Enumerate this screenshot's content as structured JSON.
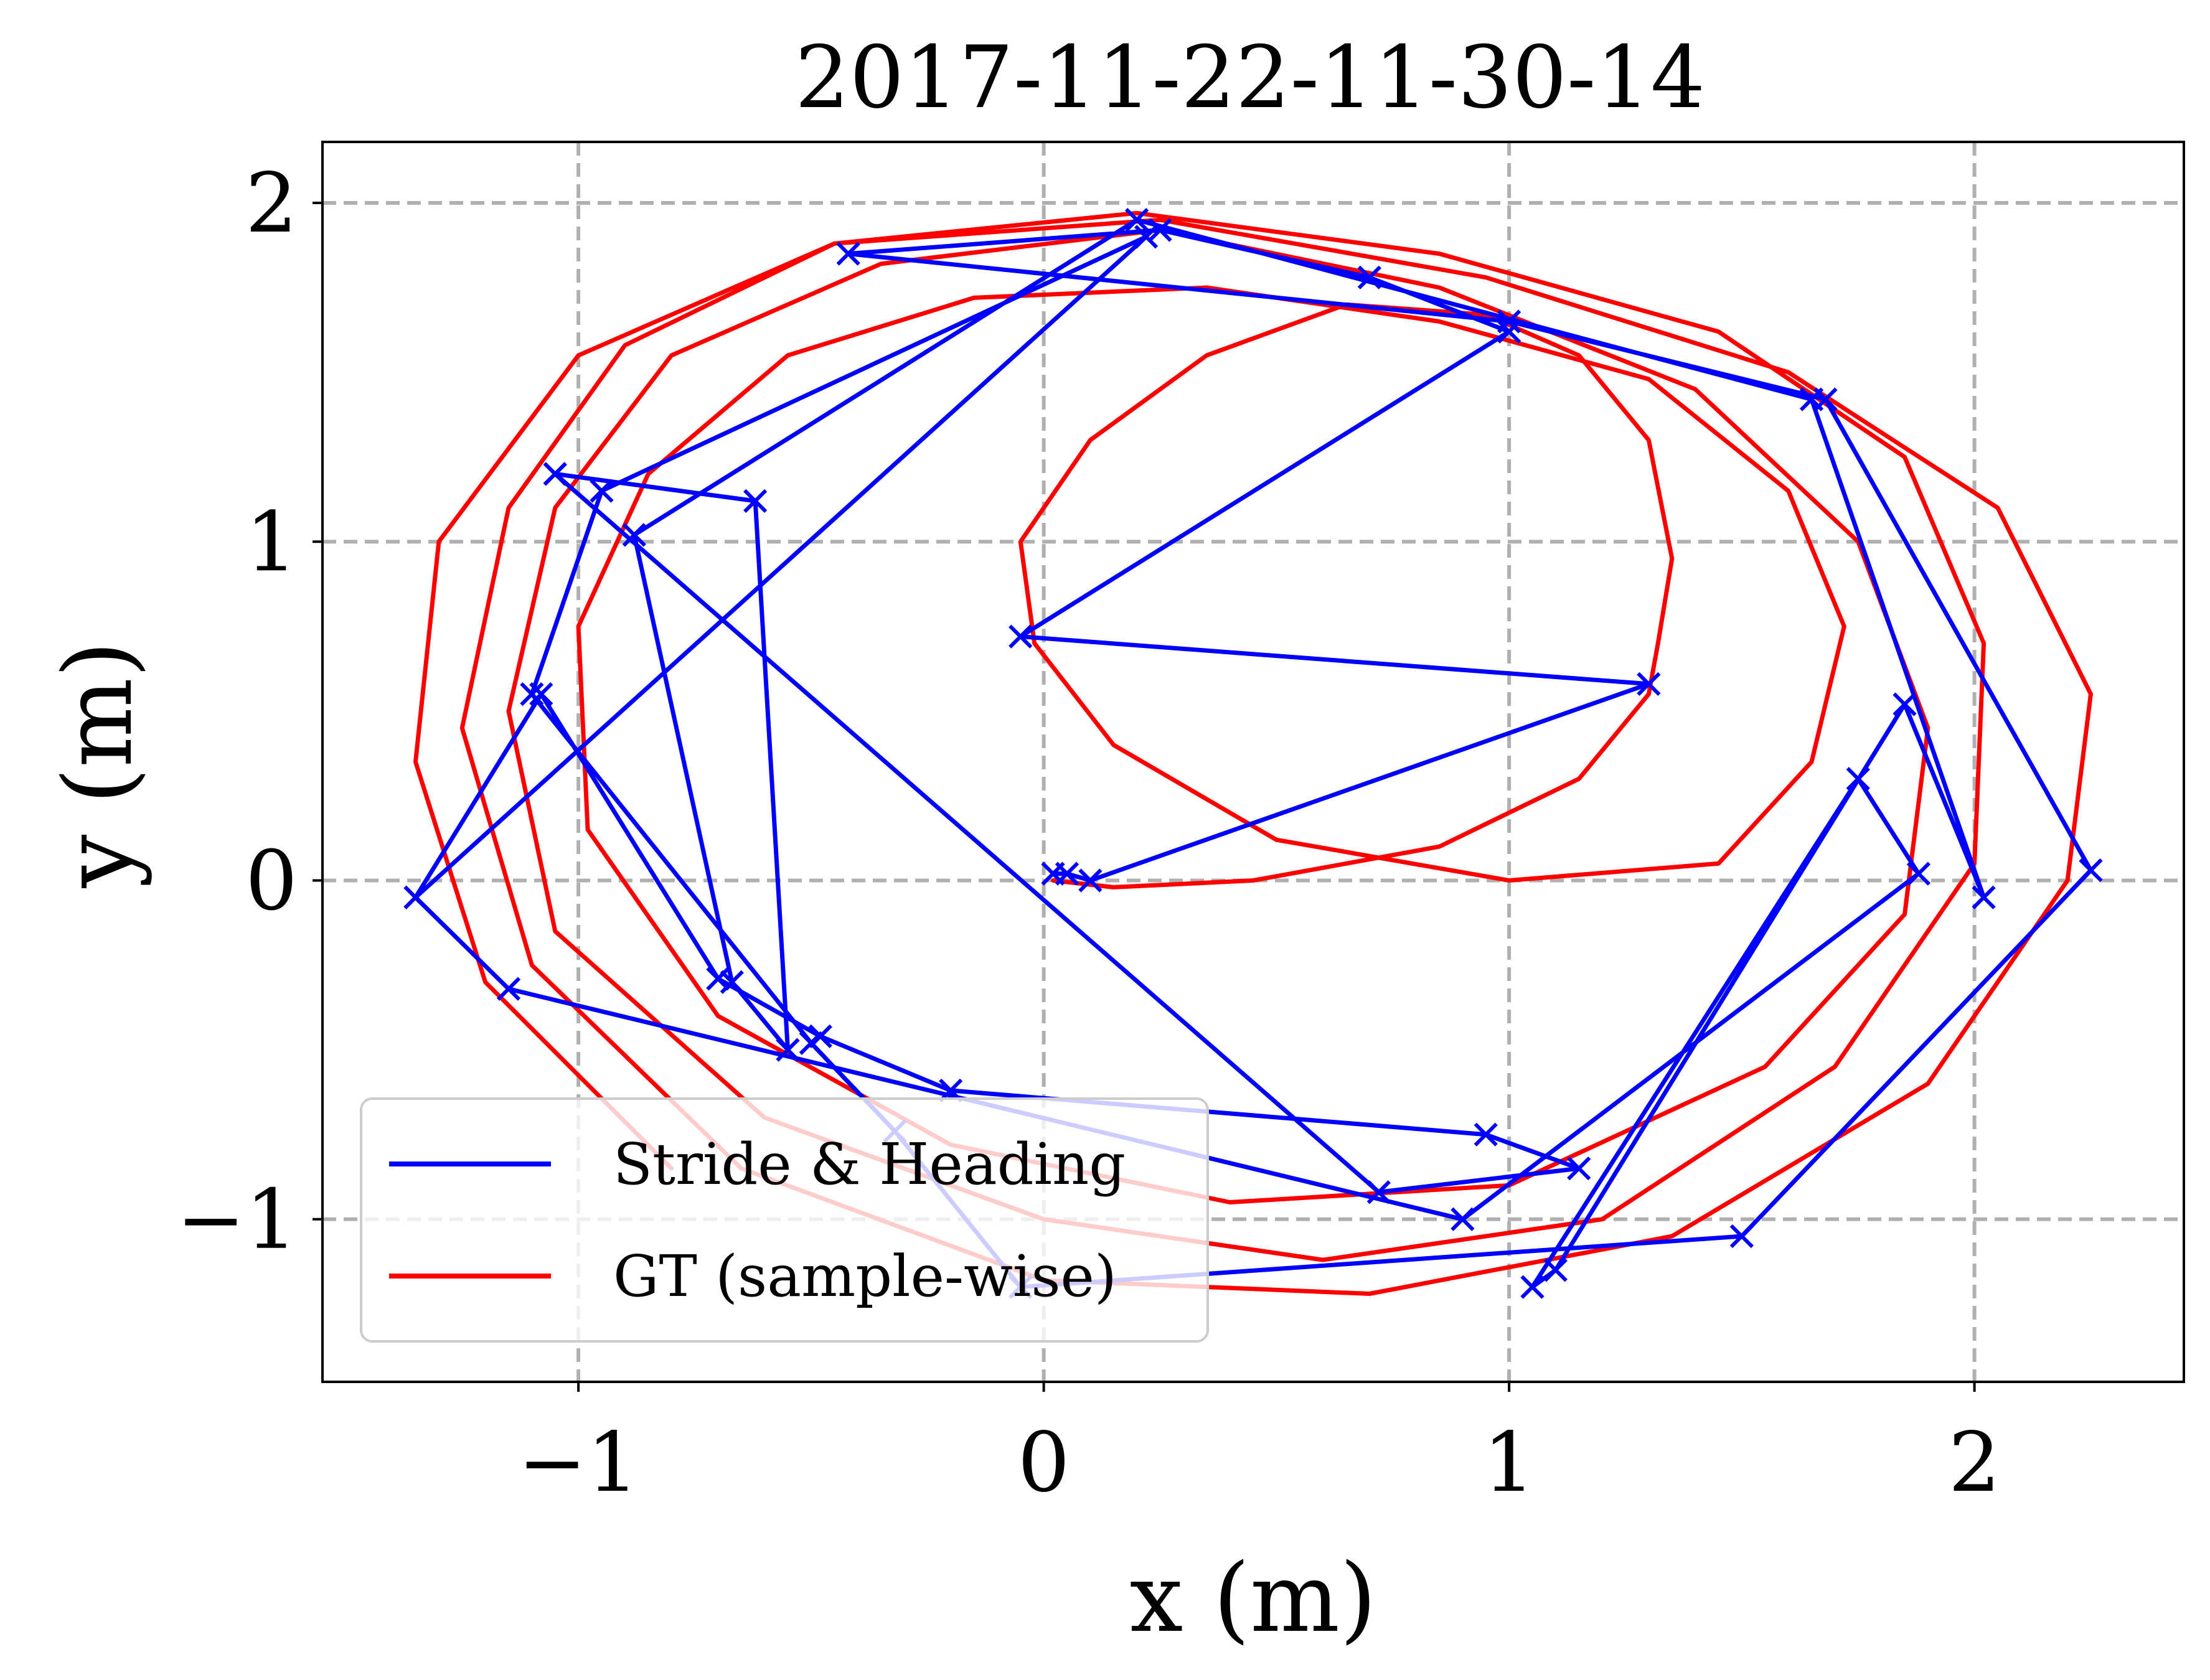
{
  "chart_data": {
    "type": "line",
    "title": "2017-11-22-11-30-14",
    "xlabel": "x (m)",
    "ylabel": "y (m)",
    "xlim": [
      -1.55,
      2.45
    ],
    "ylim": [
      -1.48,
      2.18
    ],
    "xticks": [
      -1,
      0,
      1,
      2
    ],
    "yticks": [
      -1,
      0,
      1,
      2
    ],
    "xtick_labels": [
      "−1",
      "0",
      "1",
      "2"
    ],
    "ytick_labels": [
      "−1",
      "0",
      "1",
      "2"
    ],
    "grid": true,
    "grid_style": "dashed",
    "legend_position": "lower-left",
    "series": [
      {
        "name": "Stride & Heading",
        "color": "#0000ff",
        "marker": "x",
        "x": [
          0.02,
          0.05,
          0.1,
          1.3,
          -0.05,
          1.0,
          0.7,
          0.25,
          -0.42,
          1.0,
          1.68,
          2.25,
          1.5,
          -0.05,
          -0.32,
          -0.5,
          -1.1,
          -0.95,
          0.22,
          -1.35,
          -1.15,
          0.9,
          1.88,
          1.75,
          1.05,
          1.1,
          1.85,
          2.02,
          1.65,
          0.2,
          -0.88,
          -0.67,
          -0.55,
          -0.62,
          -1.05,
          -1.05,
          0.72,
          1.15,
          0.95,
          -0.2,
          -0.48,
          -0.7,
          -1.08,
          -1.35
        ],
        "y": [
          0.02,
          0.02,
          0.0,
          0.58,
          0.72,
          1.62,
          1.78,
          1.92,
          1.85,
          1.65,
          1.42,
          0.03,
          -1.05,
          -1.2,
          -0.74,
          -0.48,
          0.55,
          1.15,
          1.9,
          -0.05,
          -0.32,
          -1.0,
          0.02,
          0.3,
          -1.2,
          -1.15,
          0.52,
          -0.05,
          1.42,
          1.95,
          1.02,
          -0.3,
          -0.5,
          1.12,
          1.2,
          1.2,
          -0.92,
          -0.85,
          -0.75,
          -0.62,
          -0.46,
          -0.29,
          0.55,
          -0.05
        ]
      },
      {
        "name": "GT (sample-wise)",
        "color": "#ff0000",
        "marker": "none",
        "x": [
          0.02,
          0.15,
          0.45,
          0.85,
          1.15,
          1.3,
          1.32,
          1.35,
          1.3,
          1.15,
          0.95,
          0.65,
          0.35,
          0.1,
          -0.05,
          -0.02,
          0.15,
          0.5,
          1.0,
          1.45,
          1.65,
          1.72,
          1.6,
          1.3,
          0.85,
          0.35,
          -0.15,
          -0.55,
          -0.85,
          -1.0,
          -0.98,
          -0.7,
          -0.2,
          0.4,
          1.0,
          1.55,
          1.85,
          1.9,
          1.75,
          1.4,
          0.85,
          0.25,
          -0.35,
          -0.8,
          -1.05,
          -1.15,
          -1.05,
          -0.6,
          0.0,
          0.6,
          1.2,
          1.7,
          2.0,
          2.02,
          1.85,
          1.45,
          0.85,
          0.2,
          -0.45,
          -0.9,
          -1.15,
          -1.25,
          -1.1,
          -0.65,
          0.0,
          0.7,
          1.35,
          1.9,
          2.2,
          2.25,
          2.05,
          1.6,
          0.95,
          0.25,
          -0.45,
          -1.0,
          -1.3,
          -1.35,
          -1.2,
          -0.8
        ],
        "y": [
          0.0,
          -0.02,
          0.0,
          0.1,
          0.3,
          0.55,
          0.7,
          0.95,
          1.3,
          1.55,
          1.67,
          1.7,
          1.55,
          1.3,
          1.0,
          0.7,
          0.4,
          0.12,
          0.0,
          0.05,
          0.35,
          0.75,
          1.15,
          1.48,
          1.65,
          1.75,
          1.72,
          1.55,
          1.2,
          0.75,
          0.15,
          -0.4,
          -0.78,
          -0.95,
          -0.9,
          -0.55,
          -0.1,
          0.45,
          1.0,
          1.45,
          1.75,
          1.92,
          1.82,
          1.55,
          1.1,
          0.5,
          -0.15,
          -0.7,
          -1.0,
          -1.12,
          -1.0,
          -0.55,
          0.05,
          0.7,
          1.25,
          1.62,
          1.85,
          1.97,
          1.88,
          1.58,
          1.1,
          0.45,
          -0.25,
          -0.85,
          -1.18,
          -1.22,
          -1.05,
          -0.6,
          0.0,
          0.55,
          1.1,
          1.5,
          1.78,
          1.95,
          1.88,
          1.55,
          1.0,
          0.35,
          -0.3,
          -0.85
        ]
      }
    ]
  }
}
